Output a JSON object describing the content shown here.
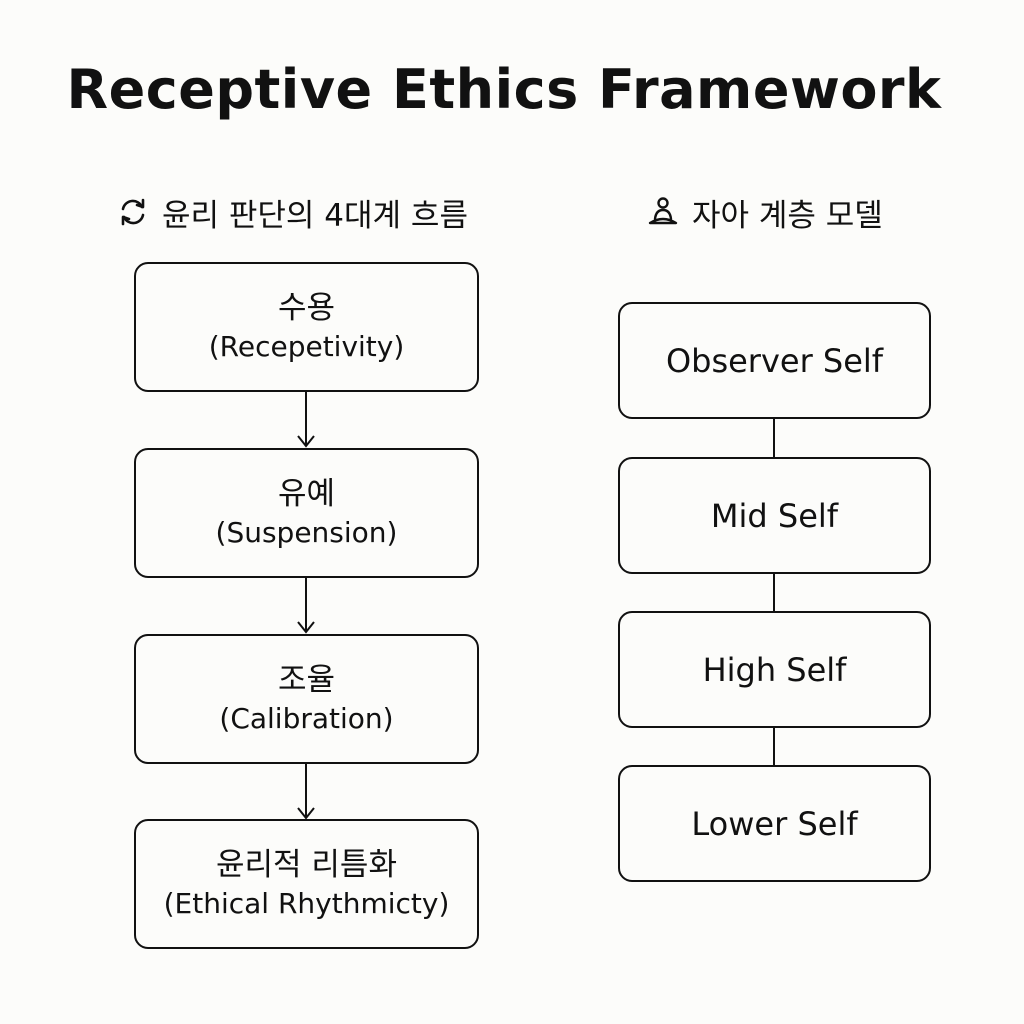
{
  "title": "Receptive Ethics Framework",
  "flow": {
    "heading": "윤리 판단의 4대계 흐름",
    "icon": "cycle-arrows-icon",
    "stages": [
      {
        "ko": "수용",
        "en": "(Recepetivity)"
      },
      {
        "ko": "유예",
        "en": "(Suspension)"
      },
      {
        "ko": "조율",
        "en": "(Calibration)"
      },
      {
        "ko": "윤리적 리틈화",
        "en": "(Ethical Rhythmicty)"
      }
    ]
  },
  "self_model": {
    "heading": "자아 계층 모델",
    "icon": "meditating-person-icon",
    "layers": [
      "Observer Self",
      "Mid Self",
      "High Self",
      "Lower Self"
    ]
  },
  "colors": {
    "background": "#fcfcfa",
    "ink": "#111111"
  }
}
